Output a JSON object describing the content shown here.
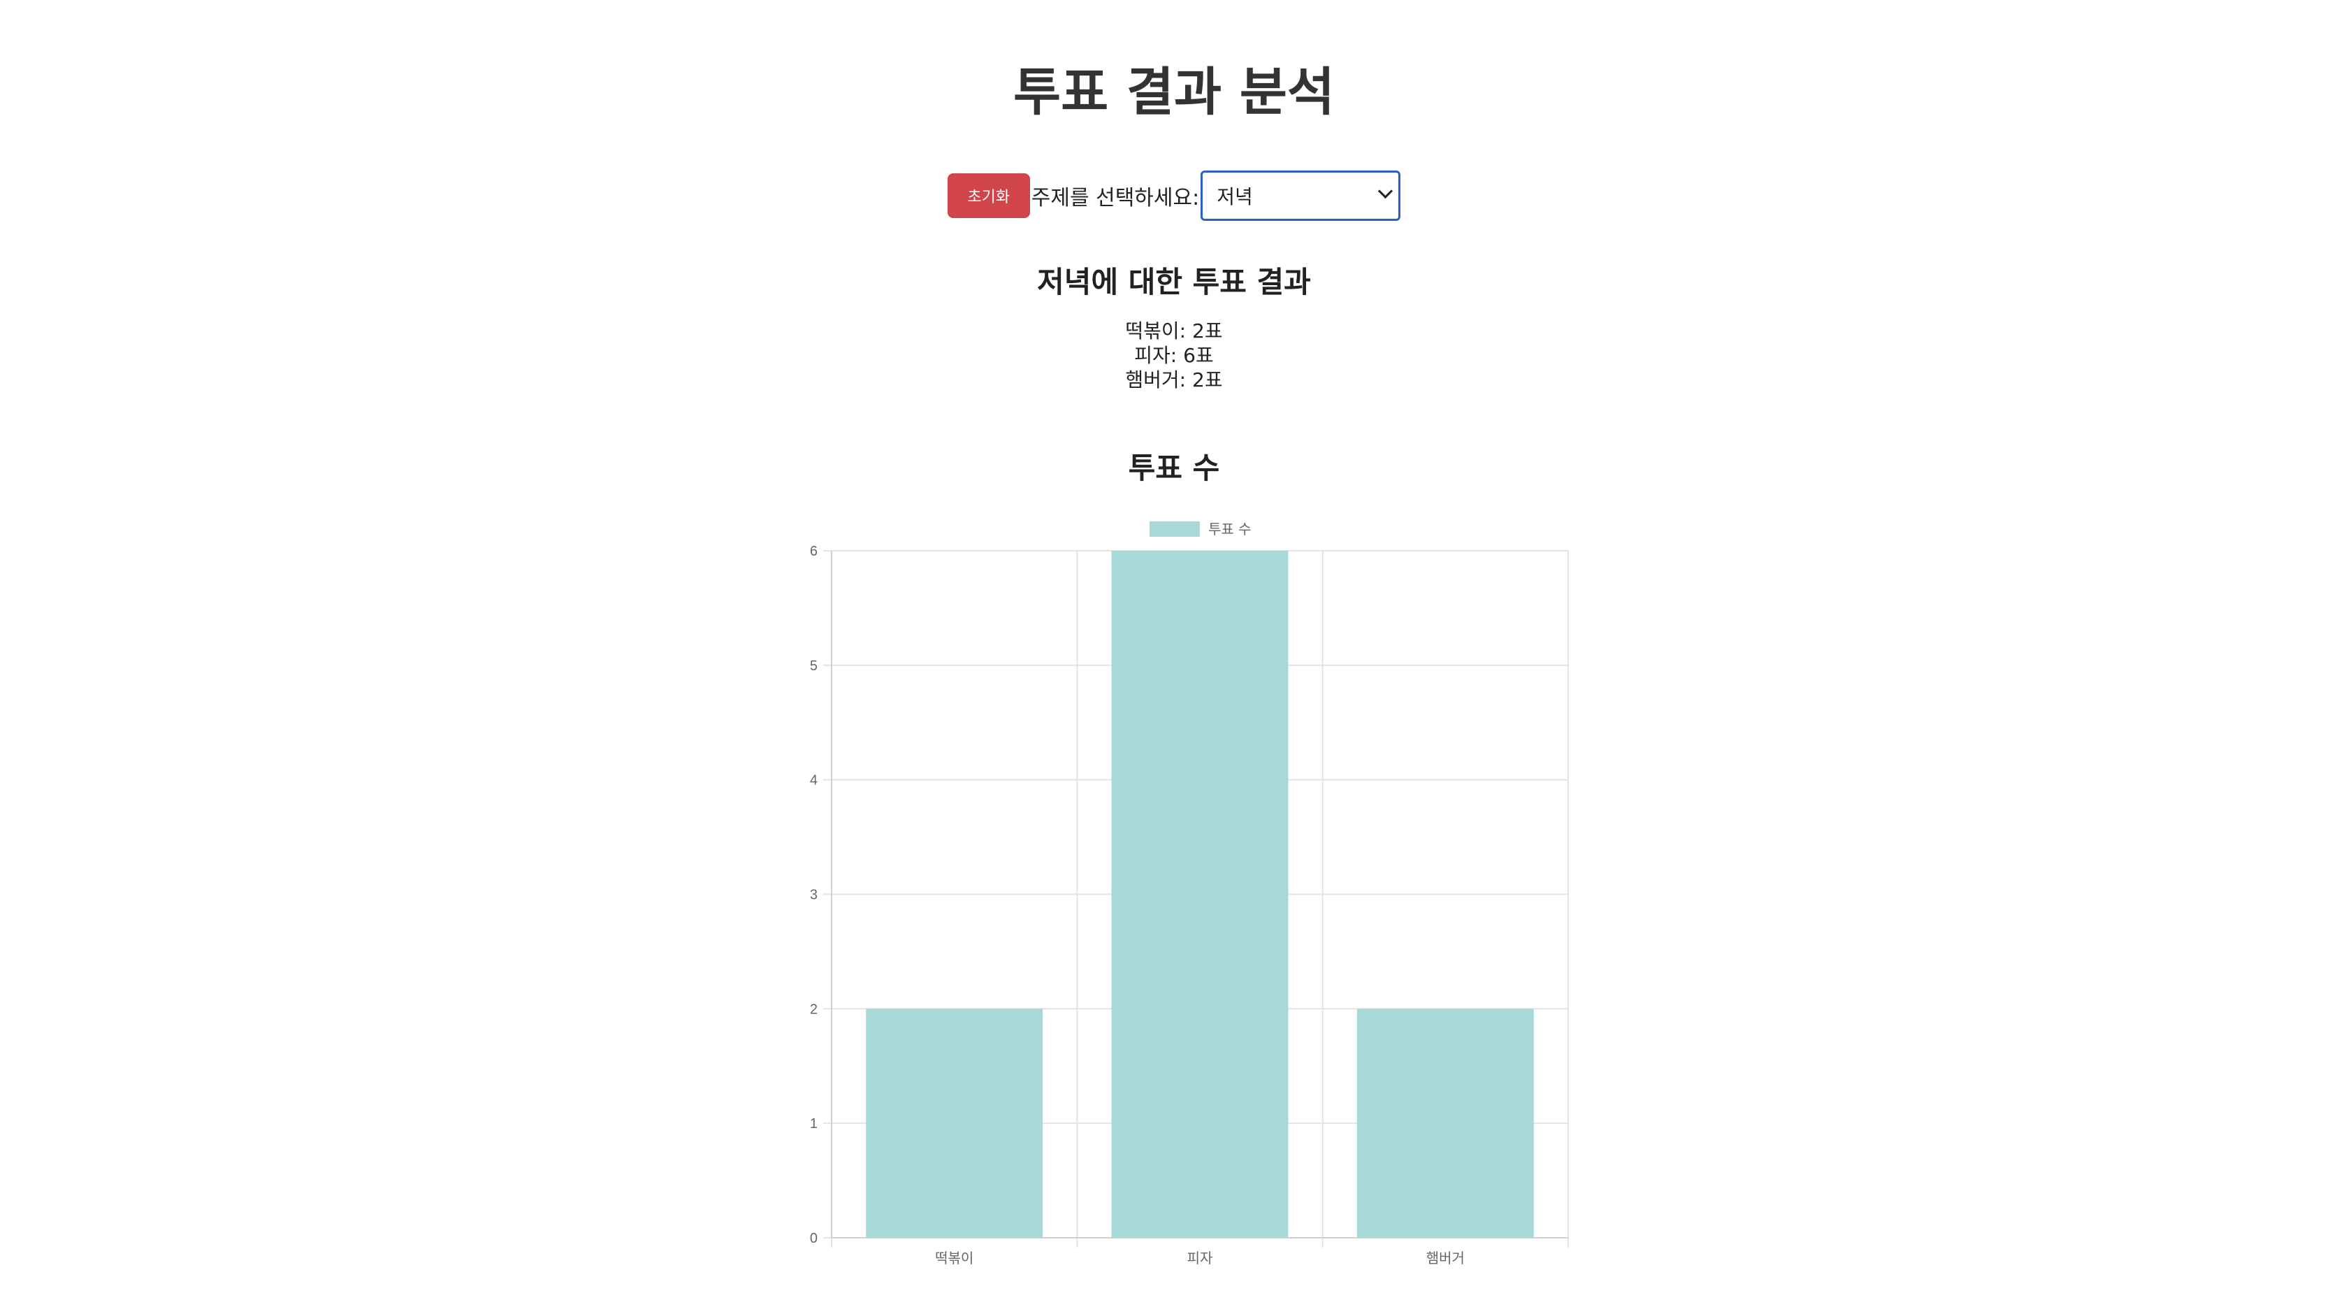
{
  "page": {
    "title": "투표 결과 분석"
  },
  "controls": {
    "reset_label": "초기화",
    "topic_label": "주제를 선택하세요:",
    "selected_topic": "저녁"
  },
  "results": {
    "title": "저녁에 대한 투표 결과",
    "items": [
      {
        "text": "떡볶이: 2표"
      },
      {
        "text": "피자: 6표"
      },
      {
        "text": "햄버거: 2표"
      }
    ]
  },
  "chart_section": {
    "title": "투표 수"
  },
  "chart_data": {
    "type": "bar",
    "categories": [
      "떡볶이",
      "피자",
      "햄버거"
    ],
    "series": [
      {
        "name": "투표 수",
        "values": [
          2,
          6,
          2
        ]
      }
    ],
    "ylim": [
      0,
      6
    ],
    "yticks": [
      0,
      1,
      2,
      3,
      4,
      5,
      6
    ],
    "grid": true,
    "legend": "top-center",
    "colors": {
      "bar_fill": "#a8d8d7",
      "grid": "#e4e4e4",
      "axis": "#d0d0d0"
    }
  }
}
